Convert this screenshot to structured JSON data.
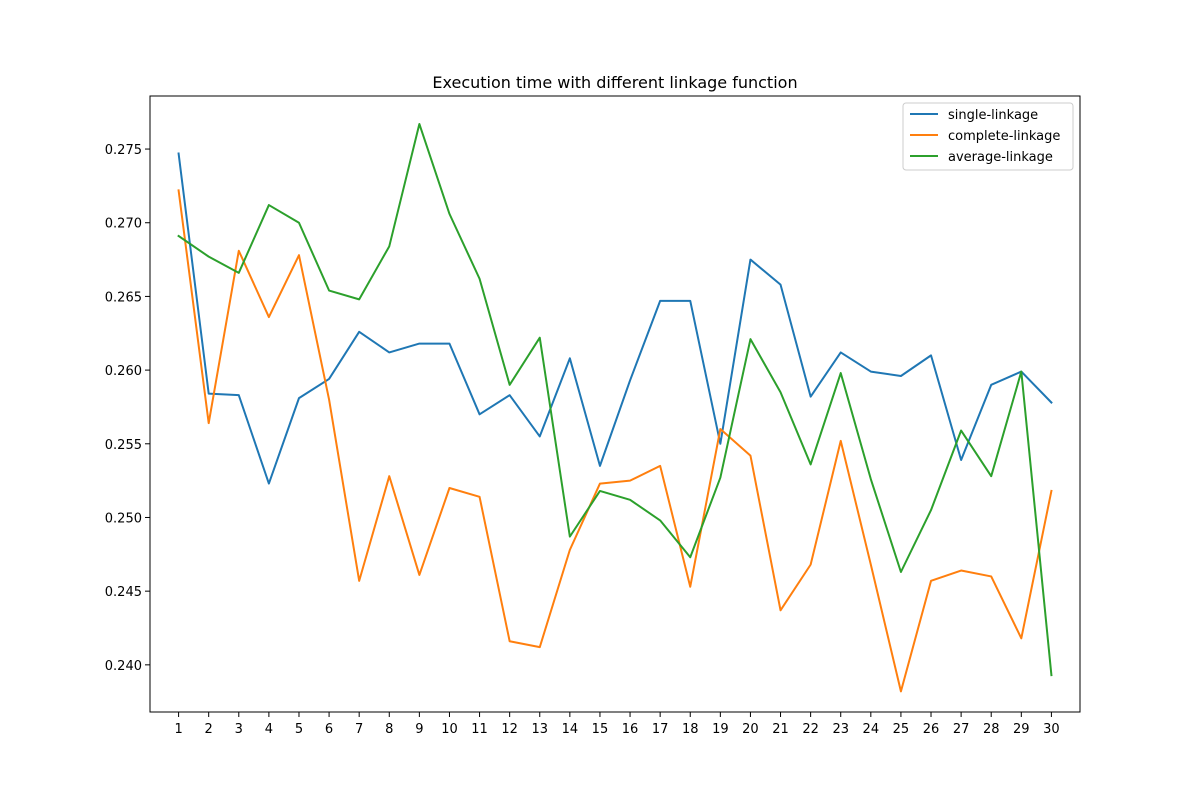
{
  "chart_data": {
    "type": "line",
    "title": "Execution time with different linkage function",
    "xlabel": "",
    "ylabel": "",
    "x": [
      1,
      2,
      3,
      4,
      5,
      6,
      7,
      8,
      9,
      10,
      11,
      12,
      13,
      14,
      15,
      16,
      17,
      18,
      19,
      20,
      21,
      22,
      23,
      24,
      25,
      26,
      27,
      28,
      29,
      30
    ],
    "xlim": [
      0.05,
      30.95
    ],
    "ylim": [
      0.2368,
      0.2786
    ],
    "yticks": [
      0.24,
      0.245,
      0.25,
      0.255,
      0.26,
      0.265,
      0.27,
      0.275
    ],
    "ytick_labels": [
      "0.240",
      "0.245",
      "0.250",
      "0.255",
      "0.260",
      "0.265",
      "0.270",
      "0.275"
    ],
    "grid": false,
    "legend_position": "top-right",
    "series": [
      {
        "name": "single-linkage",
        "color": "#1f77b4",
        "values": [
          0.2747,
          0.2584,
          0.2583,
          0.2523,
          0.2581,
          0.2594,
          0.2626,
          0.2612,
          0.2618,
          0.2618,
          0.257,
          0.2583,
          0.2555,
          0.2608,
          0.2535,
          0.2593,
          0.2647,
          0.2647,
          0.255,
          0.2675,
          0.2658,
          0.2582,
          0.2612,
          0.2599,
          0.2596,
          0.261,
          0.2539,
          0.259,
          0.2599,
          0.2578
        ]
      },
      {
        "name": "complete-linkage",
        "color": "#ff7f0e",
        "values": [
          0.2722,
          0.2564,
          0.2681,
          0.2636,
          0.2678,
          0.258,
          0.2457,
          0.2528,
          0.2461,
          0.252,
          0.2514,
          0.2416,
          0.2412,
          0.2478,
          0.2523,
          0.2525,
          0.2535,
          0.2453,
          0.256,
          0.2542,
          0.2437,
          0.2468,
          0.2552,
          0.2468,
          0.2382,
          0.2457,
          0.2464,
          0.246,
          0.2418,
          0.2518
        ]
      },
      {
        "name": "average-linkage",
        "color": "#2ca02c",
        "values": [
          0.2691,
          0.2677,
          0.2666,
          0.2712,
          0.27,
          0.2654,
          0.2648,
          0.2684,
          0.2767,
          0.2706,
          0.2662,
          0.259,
          0.2622,
          0.2487,
          0.2518,
          0.2512,
          0.2498,
          0.2473,
          0.2527,
          0.2621,
          0.2585,
          0.2536,
          0.2598,
          0.2526,
          0.2463,
          0.2505,
          0.2559,
          0.2528,
          0.2599,
          0.2393
        ]
      }
    ]
  }
}
